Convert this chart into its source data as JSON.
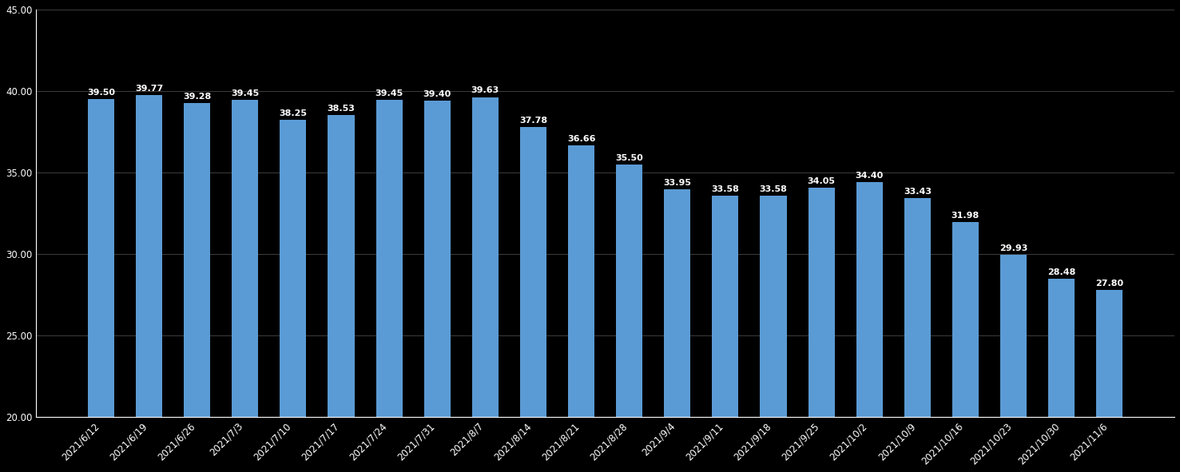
{
  "categories": [
    "2021/6/12",
    "2021/6/19",
    "2021/6/26",
    "2021/7/3",
    "2021/7/10",
    "2021/7/17",
    "2021/7/24",
    "2021/7/31",
    "2021/8/7",
    "2021/8/14",
    "2021/8/21",
    "2021/8/28",
    "2021/9/4",
    "2021/9/11",
    "2021/9/18",
    "2021/9/25",
    "2021/10/2",
    "2021/10/9",
    "2021/10/16",
    "2021/10/23",
    "2021/10/30",
    "2021/11/6"
  ],
  "values": [
    39.5,
    39.77,
    39.28,
    39.45,
    38.25,
    38.53,
    39.45,
    39.4,
    39.63,
    37.78,
    36.66,
    35.5,
    33.95,
    33.58,
    33.58,
    34.05,
    34.4,
    33.43,
    31.98,
    29.93,
    28.48,
    27.8
  ],
  "bar_color": "#5B9BD5",
  "background_color": "#000000",
  "text_color": "#FFFFFF",
  "grid_color": "#555555",
  "ylim_min": 20.0,
  "ylim_max": 45.0,
  "yticks": [
    20.0,
    25.0,
    30.0,
    35.0,
    40.0,
    45.0
  ],
  "label_fontsize": 8.0,
  "tick_fontsize": 8.5,
  "bar_width": 0.55
}
